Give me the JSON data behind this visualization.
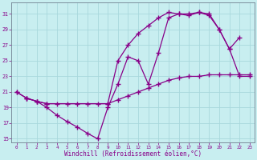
{
  "xlabel": "Windchill (Refroidissement éolien,°C)",
  "bg_color": "#c8eef0",
  "line_color": "#880088",
  "grid_color": "#a8d8dc",
  "xlim": [
    -0.5,
    23.5
  ],
  "ylim": [
    14.5,
    32.5
  ],
  "xticks": [
    0,
    1,
    2,
    3,
    4,
    5,
    6,
    7,
    8,
    9,
    10,
    11,
    12,
    13,
    14,
    15,
    16,
    17,
    18,
    19,
    20,
    21,
    22,
    23
  ],
  "yticks": [
    15,
    17,
    19,
    21,
    23,
    25,
    27,
    29,
    31
  ],
  "curve1_x": [
    0,
    1,
    2,
    3,
    4,
    5,
    6,
    7,
    8,
    9,
    10,
    11,
    12,
    13,
    14,
    15,
    16,
    17,
    18,
    19,
    20,
    21,
    22,
    23
  ],
  "curve1_y": [
    21.0,
    20.2,
    19.8,
    19.0,
    18.0,
    17.2,
    16.5,
    15.7,
    15.0,
    19.0,
    22.0,
    25.5,
    25.0,
    22.0,
    26.0,
    30.5,
    31.0,
    31.0,
    31.2,
    31.0,
    29.0,
    26.5,
    23.0,
    23.0
  ],
  "curve2_x": [
    0,
    1,
    2,
    3,
    4,
    5,
    6,
    7,
    8,
    9,
    10,
    11,
    12,
    13,
    14,
    15,
    16,
    17,
    18,
    19,
    20,
    21,
    22,
    23
  ],
  "curve2_y": [
    21.0,
    20.2,
    19.8,
    19.5,
    19.5,
    19.5,
    19.5,
    19.5,
    19.5,
    19.5,
    20.0,
    20.5,
    21.0,
    21.5,
    22.0,
    22.5,
    22.8,
    23.0,
    23.0,
    23.2,
    23.2,
    23.2,
    23.2,
    23.2
  ],
  "curve3_x": [
    1,
    2,
    3,
    9,
    10,
    11,
    12,
    13,
    14,
    15,
    16,
    17,
    18,
    19,
    20,
    21,
    22
  ],
  "curve3_y": [
    20.2,
    19.8,
    19.5,
    19.5,
    25.0,
    27.0,
    28.5,
    29.5,
    30.5,
    31.2,
    31.0,
    30.8,
    31.2,
    30.8,
    29.0,
    26.5,
    28.0
  ]
}
